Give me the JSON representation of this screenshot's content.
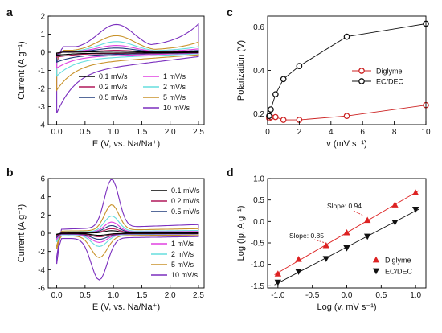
{
  "chart_data": [
    {
      "panel": "a",
      "type": "line",
      "xlabel": "E (V, vs. Na/Na⁺)",
      "ylabel": "Current (A g⁻¹)",
      "xlim": [
        -0.15,
        2.6
      ],
      "ylim": [
        -4,
        2
      ],
      "xticks": [
        0.0,
        0.5,
        1.0,
        1.5,
        2.0,
        2.5
      ],
      "yticks": [
        -4,
        -3,
        -2,
        -1,
        0,
        1,
        2
      ],
      "legend_columns": 2,
      "series": [
        {
          "name": "0.1 mV/s",
          "color": "#000000",
          "peak_ox": 0.05,
          "tail_ox": 0.02,
          "min_red": -0.15,
          "tail_red": -0.08
        },
        {
          "name": "0.2 mV/s",
          "color": "#b0195a",
          "peak_ox": 0.1,
          "tail_ox": 0.04,
          "min_red": -0.25,
          "tail_red": -0.12
        },
        {
          "name": "0.5 mV/s",
          "color": "#1f3a7a",
          "peak_ox": 0.22,
          "tail_ox": 0.08,
          "min_red": -0.5,
          "tail_red": -0.22
        },
        {
          "name": "1 mV/s",
          "color": "#e040e0",
          "peak_ox": 0.35,
          "tail_ox": 0.15,
          "min_red": -0.8,
          "tail_red": -0.35
        },
        {
          "name": "2 mV/s",
          "color": "#66dede",
          "peak_ox": 0.55,
          "tail_ox": 0.25,
          "min_red": -1.2,
          "tail_red": -0.55
        },
        {
          "name": "5 mV/s",
          "color": "#c8922a",
          "peak_ox": 0.85,
          "tail_ox": 0.45,
          "min_red": -1.9,
          "tail_red": -0.95
        },
        {
          "name": "10 mV/s",
          "color": "#7b2fbe",
          "peak_ox": 1.35,
          "tail_ox": 1.25,
          "min_red": -3.05,
          "tail_red": -1.6
        }
      ]
    },
    {
      "panel": "b",
      "type": "line",
      "xlabel": "E (V, vs. Na/Na⁺)",
      "ylabel": "Current (A g⁻¹)",
      "xlim": [
        -0.15,
        2.6
      ],
      "ylim": [
        -6,
        6
      ],
      "xticks": [
        0.0,
        0.5,
        1.0,
        1.5,
        2.0,
        2.5
      ],
      "yticks": [
        -6,
        -4,
        -2,
        0,
        2,
        4,
        6
      ],
      "legend_top": [
        "0.1 mV/s",
        "0.2 mV/s",
        "0.5 mV/s"
      ],
      "legend_bottom": [
        "1 mV/s",
        "2 mV/s",
        "5 mV/s",
        "10 mV/s"
      ],
      "series": [
        {
          "name": "0.1 mV/s",
          "color": "#000000",
          "peak_ox": 0.25,
          "min_red": -0.2
        },
        {
          "name": "0.2 mV/s",
          "color": "#b0195a",
          "peak_ox": 0.45,
          "min_red": -0.35
        },
        {
          "name": "0.5 mV/s",
          "color": "#1f3a7a",
          "peak_ox": 0.75,
          "min_red": -0.6
        },
        {
          "name": "1 mV/s",
          "color": "#e040e0",
          "peak_ox": 1.1,
          "min_red": -0.9
        },
        {
          "name": "2 mV/s",
          "color": "#66dede",
          "peak_ox": 1.7,
          "min_red": -1.3
        },
        {
          "name": "5 mV/s",
          "color": "#c8922a",
          "peak_ox": 2.8,
          "min_red": -2.4
        },
        {
          "name": "10 mV/s",
          "color": "#7b2fbe",
          "peak_ox": 5.3,
          "min_red": -4.6
        }
      ]
    },
    {
      "panel": "c",
      "type": "line",
      "xlabel": "v (mV s⁻¹)",
      "ylabel": "Polarization (V)",
      "xlim": [
        0,
        10
      ],
      "ylim": [
        0.15,
        0.65
      ],
      "xticks": [
        0,
        2,
        4,
        6,
        8,
        10
      ],
      "yticks": [
        0.2,
        0.4,
        0.6
      ],
      "series": [
        {
          "name": "Diglyme",
          "color": "#cc2222",
          "x": [
            0.1,
            0.2,
            0.5,
            1,
            2,
            5,
            10
          ],
          "y": [
            0.18,
            0.185,
            0.185,
            0.172,
            0.172,
            0.19,
            0.24
          ]
        },
        {
          "name": "EC/DEC",
          "color": "#111111",
          "x": [
            0.1,
            0.2,
            0.5,
            1,
            2,
            5,
            10
          ],
          "y": [
            0.19,
            0.22,
            0.29,
            0.36,
            0.42,
            0.555,
            0.615
          ]
        }
      ]
    },
    {
      "panel": "d",
      "type": "scatter",
      "xlabel": "Log (v, mV s⁻¹)",
      "ylabel": "Log (Ip, A g⁻¹)",
      "xlim": [
        -1.15,
        1.15
      ],
      "ylim": [
        -1.55,
        1.0
      ],
      "xticks": [
        -1.0,
        -0.5,
        0.0,
        0.5,
        1.0
      ],
      "yticks": [
        -1.5,
        -1.0,
        -0.5,
        0.0,
        0.5,
        1.0
      ],
      "series": [
        {
          "name": "Diglyme",
          "color": "#dd2222",
          "marker": "triangle-up",
          "slope": 0.94,
          "x": [
            -1.0,
            -0.7,
            -0.3,
            0.0,
            0.3,
            0.7,
            1.0
          ],
          "y": [
            -1.22,
            -0.88,
            -0.56,
            -0.26,
            0.03,
            0.39,
            0.67
          ]
        },
        {
          "name": "EC/DEC",
          "color": "#111111",
          "marker": "triangle-down",
          "slope": 0.85,
          "x": [
            -1.0,
            -0.7,
            -0.3,
            0.0,
            0.3,
            0.7,
            1.0
          ],
          "y": [
            -1.42,
            -1.17,
            -0.87,
            -0.62,
            -0.35,
            -0.02,
            0.28
          ]
        }
      ],
      "annotations": [
        "Slope: 0.94",
        "Slope: 0.85"
      ]
    }
  ]
}
